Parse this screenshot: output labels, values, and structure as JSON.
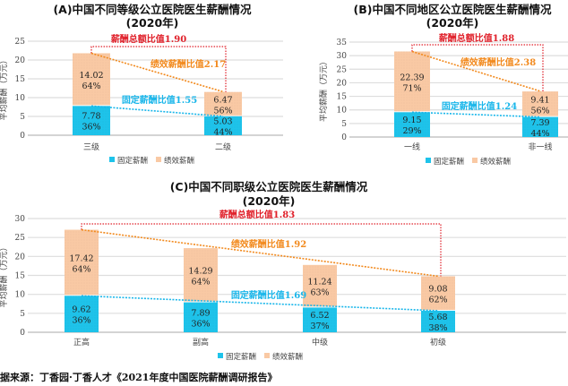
{
  "colors": {
    "fixed": "#1ec3ea",
    "performance": "#f9c9a4",
    "total_ratio": "#e0202a",
    "performance_ratio": "#f28a1e",
    "fixed_ratio": "#19b6ea",
    "grid": "#dddddd"
  },
  "chart_data": [
    {
      "type": "bar",
      "stacked": true,
      "title": "(A)中国不同等级公立医院医生薪酬情况",
      "subtitle": "(2020年)",
      "ylabel": "平均薪酬（万元）",
      "ylim": [
        0,
        25
      ],
      "yticks": [
        0,
        5,
        10,
        15,
        20,
        25
      ],
      "grid": true,
      "legend": "bottom",
      "categories": [
        "三级",
        "二级"
      ],
      "series": [
        {
          "name": "固定薪酬",
          "values": [
            7.78,
            5.03
          ],
          "labels": [
            "7.78",
            "5.03"
          ],
          "pct": [
            "36%",
            "44%"
          ]
        },
        {
          "name": "绩效薪酬",
          "values": [
            14.02,
            6.47
          ],
          "labels": [
            "14.02",
            "6.47"
          ],
          "pct": [
            "64%",
            "56%"
          ]
        }
      ],
      "ratios": {
        "total": "薪酬总额比值1.90",
        "performance": "绩效薪酬比值2.17",
        "fixed": "固定薪酬比值1.55"
      }
    },
    {
      "type": "bar",
      "stacked": true,
      "title": "(B)中国不同地区公立医院医生薪酬情况",
      "subtitle": "(2020年)",
      "ylabel": "平均薪酬（万元）",
      "ylim": [
        0,
        35
      ],
      "yticks": [
        0,
        5,
        10,
        15,
        20,
        25,
        30,
        35
      ],
      "grid": true,
      "legend": "bottom",
      "categories": [
        "一线",
        "非一线"
      ],
      "series": [
        {
          "name": "固定薪酬",
          "values": [
            9.15,
            7.39
          ],
          "labels": [
            "9.15",
            "7.39"
          ],
          "pct": [
            "29%",
            "44%"
          ]
        },
        {
          "name": "绩效薪酬",
          "values": [
            22.39,
            9.41
          ],
          "labels": [
            "22.39",
            "9.41"
          ],
          "pct": [
            "71%",
            "56%"
          ]
        }
      ],
      "ratios": {
        "total": "薪酬总额比值1.88",
        "performance": "绩效薪酬比值2.38",
        "fixed": "固定薪酬比值1.24"
      }
    },
    {
      "type": "bar",
      "stacked": true,
      "title": "(C)中国不同职级公立医院医生薪酬情况",
      "subtitle": "(2020年)",
      "ylabel": "平均薪酬（万元）",
      "ylim": [
        0,
        30
      ],
      "yticks": [
        0,
        5,
        10,
        15,
        20,
        25,
        30
      ],
      "grid": true,
      "legend": "bottom",
      "categories": [
        "正高",
        "副高",
        "中级",
        "初级"
      ],
      "series": [
        {
          "name": "固定薪酬",
          "values": [
            9.62,
            7.89,
            6.52,
            5.68
          ],
          "labels": [
            "9.62",
            "7.89",
            "6.52",
            "5.68"
          ],
          "pct": [
            "36%",
            "36%",
            "37%",
            "38%"
          ]
        },
        {
          "name": "绩效薪酬",
          "values": [
            17.42,
            14.29,
            11.24,
            9.08
          ],
          "labels": [
            "17.42",
            "14.29",
            "11.24",
            "9.08"
          ],
          "pct": [
            "64%",
            "64%",
            "63%",
            "62%"
          ]
        }
      ],
      "ratios": {
        "total": "薪酬总额比值1.83",
        "performance": "绩效薪酬比值1.92",
        "fixed": "固定薪酬比值1.69"
      }
    }
  ],
  "source": "据来源：丁香园·丁香人才《2021年度中国医院薪酬调研报告》"
}
